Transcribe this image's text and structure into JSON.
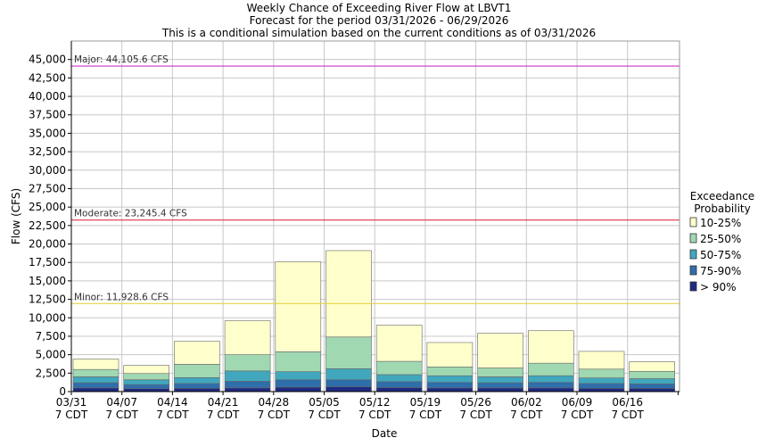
{
  "chart_data": {
    "type": "bar",
    "stacked": true,
    "title": "Weekly Chance of Exceeding River Flow at LBVT1",
    "subtitle": [
      "Forecast for the period 03/31/2026 - 06/29/2026",
      "This is a conditional simulation based on the current conditions as of 03/31/2026"
    ],
    "xlabel": "Date",
    "ylabel": "Flow (CFS)",
    "ylim": [
      0,
      47500
    ],
    "yticks": [
      "0",
      "2,500",
      "5,000",
      "7,500",
      "10,000",
      "12,500",
      "15,000",
      "17,500",
      "20,000",
      "22,500",
      "25,000",
      "27,500",
      "30,000",
      "32,500",
      "35,000",
      "37,500",
      "40,000",
      "42,500",
      "45,000"
    ],
    "ytick_values": [
      0,
      2500,
      5000,
      7500,
      10000,
      12500,
      15000,
      17500,
      20000,
      22500,
      25000,
      27500,
      30000,
      32500,
      35000,
      37500,
      40000,
      42500,
      45000
    ],
    "categories": [
      [
        "03/31",
        "7 CDT"
      ],
      [
        "04/07",
        "7 CDT"
      ],
      [
        "04/14",
        "7 CDT"
      ],
      [
        "04/21",
        "7 CDT"
      ],
      [
        "04/28",
        "7 CDT"
      ],
      [
        "05/05",
        "7 CDT"
      ],
      [
        "05/12",
        "7 CDT"
      ],
      [
        "05/19",
        "7 CDT"
      ],
      [
        "05/26",
        "7 CDT"
      ],
      [
        "06/02",
        "7 CDT"
      ],
      [
        "06/09",
        "7 CDT"
      ],
      [
        "06/16",
        "7 CDT"
      ]
    ],
    "legend_title": [
      "Exceedance",
      "Probability"
    ],
    "legend_position": "right",
    "grid": true,
    "series": [
      {
        "name": "> 90%",
        "color": "#1f2a80",
        "values": [
          500,
          400,
          450,
          500,
          600,
          650,
          550,
          500,
          500,
          500,
          450,
          450
        ]
      },
      {
        "name": "75-90%",
        "color": "#2e6eaa",
        "values": [
          700,
          550,
          650,
          900,
          1000,
          950,
          800,
          750,
          700,
          750,
          650,
          600
        ]
      },
      {
        "name": "50-75%",
        "color": "#41a7bd",
        "values": [
          800,
          650,
          800,
          1400,
          1100,
          1500,
          950,
          900,
          800,
          900,
          750,
          700
        ]
      },
      {
        "name": "25-50%",
        "color": "#a0d8b2",
        "values": [
          1000,
          850,
          1800,
          2200,
          2700,
          4300,
          1800,
          1200,
          1200,
          1700,
          1200,
          1000
        ]
      },
      {
        "name": "10-25%",
        "color": "#ffffcc",
        "values": [
          1400,
          1100,
          3100,
          4600,
          12200,
          11700,
          4900,
          3300,
          4700,
          4400,
          2400,
          1300
        ]
      }
    ],
    "thresholds": [
      {
        "label": "Major: 44,105.6 CFS",
        "value": 44105.6,
        "color": "#cc33cc"
      },
      {
        "label": "Moderate: 23,245.4 CFS",
        "value": 23245.4,
        "color": "#dd3344"
      },
      {
        "label": "Minor: 11,928.6 CFS",
        "value": 11928.6,
        "color": "#e6d24a"
      }
    ]
  }
}
